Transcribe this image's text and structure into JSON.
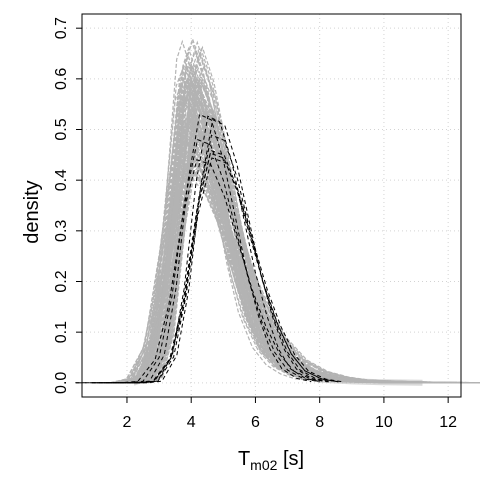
{
  "chart_data": {
    "type": "line",
    "title": "",
    "xlabel": {
      "main": "T",
      "subscript": "m02",
      "unit": " [s]"
    },
    "ylabel": "density",
    "xlim": [
      0.6,
      12.4
    ],
    "ylim": [
      -0.028,
      0.728
    ],
    "xticks": [
      2,
      4,
      6,
      8,
      10,
      12
    ],
    "yticks": [
      0.0,
      0.1,
      0.2,
      0.3,
      0.4,
      0.5,
      0.6,
      0.7
    ],
    "ytick_labels": [
      "0.0",
      "0.1",
      "0.2",
      "0.3",
      "0.4",
      "0.5",
      "0.6",
      "0.7"
    ],
    "grid": true,
    "legend": "none",
    "colors": {
      "ensemble": "#b3b3b3",
      "observed": "#000000",
      "grid": "#d3d3d3"
    },
    "series": [
      {
        "style": "dashed-grey",
        "description_of_bundle": "many overlapping ensemble densities",
        "peak_x_range": [
          3.7,
          4.4
        ],
        "peak_y_range": [
          0.41,
          0.68
        ],
        "x": [
          2.2,
          2.6,
          3.0,
          3.4,
          3.8,
          4.0,
          4.4,
          4.8,
          5.2,
          5.6,
          6.0,
          6.5,
          7.0,
          7.5,
          8.0,
          9.0,
          10.0,
          11.2
        ],
        "y": [
          0.0,
          0.01,
          0.09,
          0.3,
          0.55,
          0.58,
          0.52,
          0.42,
          0.3,
          0.2,
          0.12,
          0.06,
          0.03,
          0.015,
          0.007,
          0.003,
          0.001,
          0.0
        ]
      },
      {
        "style": "dashed-black",
        "description_of_bundle": "observed densities",
        "peak_x_range": [
          4.1,
          4.7
        ],
        "peak_y_range": [
          0.41,
          0.56
        ],
        "x": [
          0.7,
          2.0,
          2.5,
          3.0,
          3.4,
          3.8,
          4.2,
          4.6,
          5.0,
          5.4,
          5.8,
          6.2,
          6.6,
          7.0,
          7.5,
          8.0
        ],
        "y": [
          0.0,
          0.0,
          0.003,
          0.05,
          0.17,
          0.36,
          0.48,
          0.47,
          0.4,
          0.3,
          0.2,
          0.12,
          0.06,
          0.025,
          0.008,
          0.002
        ]
      }
    ]
  }
}
